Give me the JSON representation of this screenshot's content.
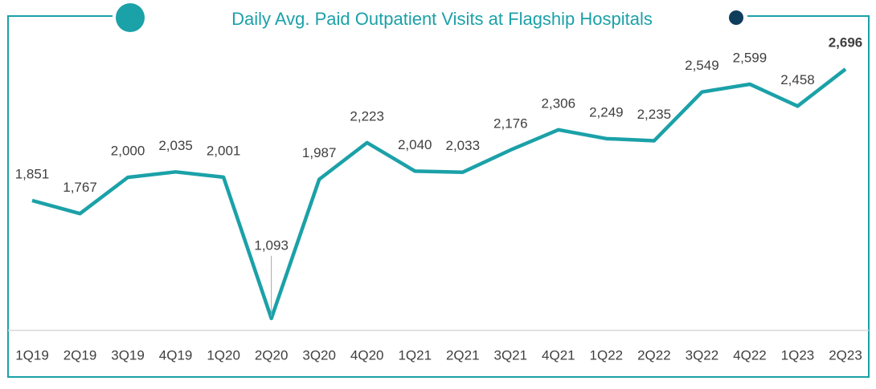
{
  "chart_data": {
    "type": "line",
    "title": "Daily Avg. Paid Outpatient Visits at Flagship Hospitals",
    "categories": [
      "1Q19",
      "2Q19",
      "3Q19",
      "4Q19",
      "1Q20",
      "2Q20",
      "3Q20",
      "4Q20",
      "1Q21",
      "2Q21",
      "3Q21",
      "4Q21",
      "1Q22",
      "2Q22",
      "3Q22",
      "4Q22",
      "1Q23",
      "2Q23"
    ],
    "series": [
      {
        "name": "Daily Avg. Paid Outpatient Visits",
        "color": "#1ba1a8",
        "values": [
          1851,
          1767,
          2000,
          2035,
          2001,
          1093,
          1987,
          2223,
          2040,
          2033,
          2176,
          2306,
          2249,
          2235,
          2549,
          2599,
          2458,
          2696
        ],
        "value_labels": [
          "1,851",
          "1,767",
          "2,000",
          "2,035",
          "2,001",
          "1,093",
          "1,987",
          "2,223",
          "2,040",
          "2,033",
          "2,176",
          "2,306",
          "2,249",
          "2,235",
          "2,549",
          "2,599",
          "2,458",
          "2,696"
        ]
      }
    ],
    "ylim": [
      1000,
      2800
    ]
  }
}
